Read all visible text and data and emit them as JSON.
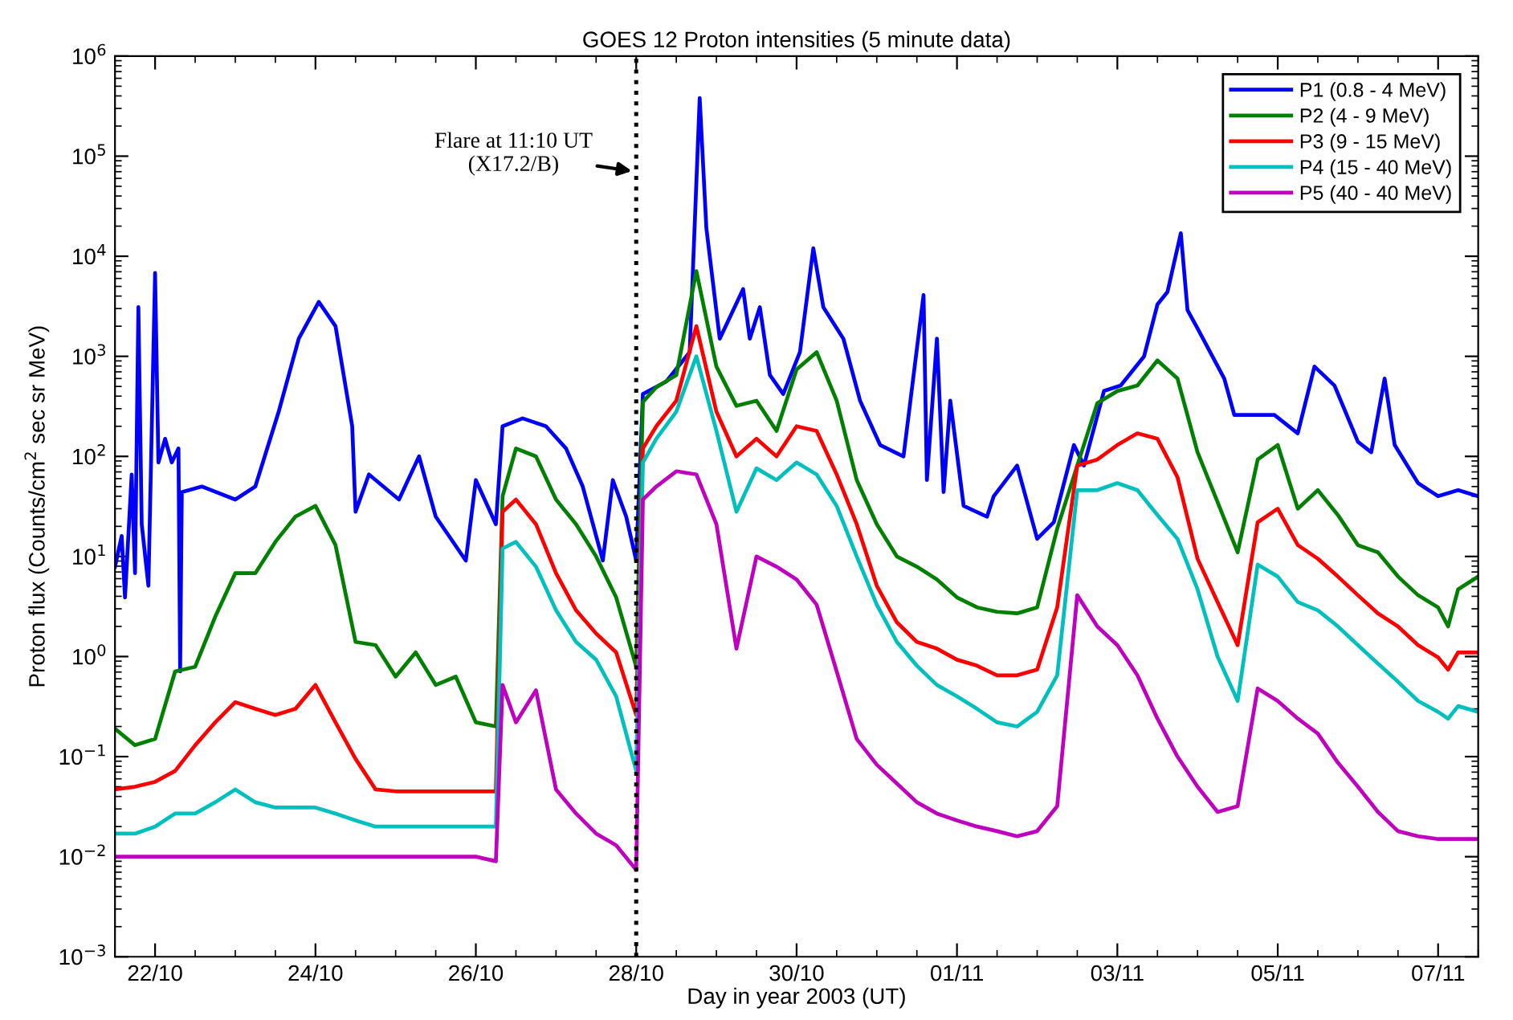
{
  "chart_data": {
    "type": "line",
    "title": "GOES 12 Proton intensities (5 minute data)",
    "xlabel": "Day in year 2003 (UT)",
    "ylabel": "Proton flux (Counts/cm$^{2}$ sec sr MeV)",
    "log": "y",
    "grid": false,
    "legend": "top right",
    "marker": "none",
    "line_style": "solid",
    "xlim": [
      "2003-10-21T12:00",
      "2003-11-07T12:00"
    ],
    "xticks": [
      {
        "value": "2003-10-22",
        "label": "22/10"
      },
      {
        "value": "2003-10-24",
        "label": "24/10"
      },
      {
        "value": "2003-10-26",
        "label": "26/10"
      },
      {
        "value": "2003-10-28",
        "label": "28/10"
      },
      {
        "value": "2003-10-30",
        "label": "30/10"
      },
      {
        "value": "2003-11-01",
        "label": "01/11"
      },
      {
        "value": "2003-11-03",
        "label": "03/11"
      },
      {
        "value": "2003-11-05",
        "label": "05/11"
      },
      {
        "value": "2003-11-07",
        "label": "07/11"
      }
    ],
    "ylim": [
      0.001,
      1000000
    ],
    "yticks": [
      {
        "value": 0.001,
        "label": "10$^{−3}$"
      },
      {
        "value": 0.01,
        "label": "10$^{−2}$"
      },
      {
        "value": 0.1,
        "label": "10$^{−1}$"
      },
      {
        "value": 1,
        "label": "10$^{0}$"
      },
      {
        "value": 10,
        "label": "10$^{1}$"
      },
      {
        "value": 100,
        "label": "10$^{2}$"
      },
      {
        "value": 1000,
        "label": "10$^{3}$"
      },
      {
        "value": 10000,
        "label": "10$^{4}$"
      },
      {
        "value": 100000,
        "label": "10$^{5}$"
      },
      {
        "value": 1000000,
        "label": "10$^{6}$"
      }
    ],
    "ref_lines": [
      {
        "axis": "x",
        "value": "2003-10-28",
        "label": null,
        "color": "#000000",
        "line_style": "dotted"
      }
    ],
    "annotations": [
      {
        "text": "Flare at 11:10 UT\n(X17.2/B)",
        "x": "2003-10-28",
        "y": 70000
      }
    ],
    "x": [
      "2003-10-21T12:00",
      "2003-10-21T18:00",
      "2003-10-22T00:00",
      "2003-10-22T06:00",
      "2003-10-22T12:00",
      "2003-10-22T18:00",
      "2003-10-23T00:00",
      "2003-10-23T06:00",
      "2003-10-23T12:00",
      "2003-10-23T18:00",
      "2003-10-24T00:00",
      "2003-10-24T06:00",
      "2003-10-24T12:00",
      "2003-10-24T18:00",
      "2003-10-25T00:00",
      "2003-10-25T06:00",
      "2003-10-25T12:00",
      "2003-10-25T18:00",
      "2003-10-26T00:00",
      "2003-10-26T06:00",
      "2003-10-26T08:00",
      "2003-10-26T12:00",
      "2003-10-26T18:00",
      "2003-10-27T00:00",
      "2003-10-27T06:00",
      "2003-10-27T12:00",
      "2003-10-27T18:00",
      "2003-10-28T00:00",
      "2003-10-28T02:00",
      "2003-10-28T06:00",
      "2003-10-28T12:00",
      "2003-10-28T18:00",
      "2003-10-29T00:00",
      "2003-10-29T06:00",
      "2003-10-29T12:00",
      "2003-10-29T18:00",
      "2003-10-30T00:00",
      "2003-10-30T06:00",
      "2003-10-30T12:00",
      "2003-10-30T18:00",
      "2003-10-31T00:00",
      "2003-10-31T06:00",
      "2003-10-31T12:00",
      "2003-10-31T18:00",
      "2003-11-01T00:00",
      "2003-11-01T06:00",
      "2003-11-01T12:00",
      "2003-11-01T18:00",
      "2003-11-02T00:00",
      "2003-11-02T06:00",
      "2003-11-02T12:00",
      "2003-11-02T18:00",
      "2003-11-03T00:00",
      "2003-11-03T06:00",
      "2003-11-03T12:00",
      "2003-11-03T18:00",
      "2003-11-04T00:00",
      "2003-11-04T06:00",
      "2003-11-04T12:00",
      "2003-11-04T18:00",
      "2003-11-05T00:00",
      "2003-11-05T06:00",
      "2003-11-05T12:00",
      "2003-11-05T18:00",
      "2003-11-06T00:00",
      "2003-11-06T06:00",
      "2003-11-06T12:00",
      "2003-11-06T18:00",
      "2003-11-07T00:00",
      "2003-11-07T03:00",
      "2003-11-07T06:00",
      "2003-11-07T12:00"
    ],
    "series": [
      {
        "name": "P1 (0.8 - 4 MeV)",
        "color": "#0000ff",
        "x": [
          "2003-10-21T12:00",
          "2003-10-21T14:00",
          "2003-10-21T15:00",
          "2003-10-21T17:00",
          "2003-10-21T18:00",
          "2003-10-21T19:00",
          "2003-10-21T20:00",
          "2003-10-21T22:00",
          "2003-10-22T00:00",
          "2003-10-22T01:00",
          "2003-10-22T03:00",
          "2003-10-22T05:00",
          "2003-10-22T07:00",
          "2003-10-22T07:30",
          "2003-10-22T08:00",
          "2003-10-22T14:00",
          "2003-10-23T00:00",
          "2003-10-23T06:00",
          "2003-10-23T13:00",
          "2003-10-23T19:00",
          "2003-10-24T01:00",
          "2003-10-24T06:00",
          "2003-10-24T11:00",
          "2003-10-24T12:00",
          "2003-10-24T16:00",
          "2003-10-25T01:00",
          "2003-10-25T07:00",
          "2003-10-25T12:00",
          "2003-10-25T21:00",
          "2003-10-26T00:00",
          "2003-10-26T06:00",
          "2003-10-26T08:00",
          "2003-10-26T14:00",
          "2003-10-26T21:00",
          "2003-10-27T03:00",
          "2003-10-27T08:00",
          "2003-10-27T14:00",
          "2003-10-27T17:00",
          "2003-10-27T21:00",
          "2003-10-28T00:00",
          "2003-10-28T02:00",
          "2003-10-28T09:00",
          "2003-10-28T16:00",
          "2003-10-28T19:00",
          "2003-10-28T21:00",
          "2003-10-29T01:00",
          "2003-10-29T08:00",
          "2003-10-29T10:00",
          "2003-10-29T13:00",
          "2003-10-29T16:00",
          "2003-10-29T20:00",
          "2003-10-30T01:00",
          "2003-10-30T05:00",
          "2003-10-30T08:00",
          "2003-10-30T14:00",
          "2003-10-30T19:00",
          "2003-10-31T01:00",
          "2003-10-31T08:00",
          "2003-10-31T14:00",
          "2003-10-31T15:00",
          "2003-10-31T18:00",
          "2003-10-31T20:00",
          "2003-10-31T22:00",
          "2003-11-01T02:00",
          "2003-11-01T09:00",
          "2003-11-01T11:00",
          "2003-11-01T18:00",
          "2003-11-02T00:00",
          "2003-11-02T05:00",
          "2003-11-02T11:00",
          "2003-11-02T14:00",
          "2003-11-02T20:00",
          "2003-11-03T01:00",
          "2003-11-03T08:00",
          "2003-11-03T12:00",
          "2003-11-03T15:00",
          "2003-11-03T19:00",
          "2003-11-03T21:00",
          "2003-11-04T00:00",
          "2003-11-04T08:00",
          "2003-11-04T11:00",
          "2003-11-04T23:00",
          "2003-11-05T06:00",
          "2003-11-05T11:00",
          "2003-11-05T17:00",
          "2003-11-06T00:00",
          "2003-11-06T04:00",
          "2003-11-06T08:00",
          "2003-11-06T11:00",
          "2003-11-06T18:00",
          "2003-11-07T00:00",
          "2003-11-07T06:00",
          "2003-11-07T12:00"
        ],
        "values": [
          7.9,
          16,
          3.9,
          66,
          6.8,
          3100,
          21,
          5.1,
          6800,
          87,
          150,
          87,
          120,
          0.71,
          44,
          50,
          37,
          50,
          280,
          1500,
          3500,
          2000,
          200,
          28,
          66,
          37,
          100,
          25,
          9.1,
          58,
          21,
          200,
          240,
          200,
          120,
          50,
          9.1,
          58,
          25,
          9.1,
          420,
          560,
          1100,
          380000,
          19000,
          1500,
          4700,
          1500,
          3100,
          650,
          420,
          1100,
          12000,
          3100,
          1500,
          360,
          130,
          100,
          4100,
          58,
          1500,
          44,
          360,
          32,
          25,
          40,
          81,
          15,
          22,
          130,
          81,
          450,
          510,
          1000,
          3300,
          4400,
          17000,
          2900,
          1900,
          600,
          260,
          260,
          170,
          790,
          510,
          140,
          110,
          600,
          130,
          54,
          40,
          46,
          40
        ]
      },
      {
        "name": "P2 (4 - 9 MeV)",
        "color": "#008000",
        "values": [
          0.19,
          0.13,
          0.15,
          0.71,
          0.79,
          2.5,
          6.8,
          6.8,
          14,
          25,
          32,
          13,
          1.4,
          1.3,
          0.63,
          1.1,
          0.52,
          0.63,
          0.22,
          0.2,
          40,
          120,
          100,
          37,
          21,
          10,
          3.9,
          0.79,
          350,
          490,
          650,
          7100,
          790,
          320,
          360,
          180,
          740,
          1100,
          360,
          58,
          21,
          10,
          7.9,
          5.9,
          3.9,
          3.1,
          2.8,
          2.7,
          3.1,
          19,
          81,
          340,
          450,
          510,
          910,
          600,
          110,
          35,
          11,
          93,
          130,
          30,
          46,
          26,
          13,
          11,
          6.3,
          4.1,
          3.1,
          2.0,
          4.7,
          6.3
        ]
      },
      {
        "name": "P3 (9 - 15 MeV)",
        "color": "#ff0000",
        "values": [
          0.047,
          0.05,
          0.056,
          0.072,
          0.13,
          0.22,
          0.35,
          0.3,
          0.26,
          0.3,
          0.52,
          0.22,
          0.095,
          0.047,
          0.045,
          0.045,
          0.045,
          0.045,
          0.045,
          0.045,
          28,
          37,
          21,
          6.8,
          2.9,
          1.7,
          1.1,
          0.26,
          120,
          200,
          360,
          2000,
          280,
          100,
          150,
          100,
          200,
          180,
          66,
          21,
          5.1,
          2.2,
          1.4,
          1.2,
          0.93,
          0.81,
          0.65,
          0.65,
          0.74,
          3.1,
          81,
          93,
          130,
          170,
          150,
          62,
          9.5,
          3.5,
          1.3,
          22,
          30,
          13,
          9.5,
          6.3,
          4.1,
          2.7,
          2.0,
          1.3,
          0.98,
          0.74,
          1.1,
          1.1
        ]
      },
      {
        "name": "P4 (15 - 40 MeV)",
        "color": "#00bfbf",
        "values": [
          0.017,
          0.017,
          0.02,
          0.027,
          0.027,
          0.035,
          0.047,
          0.035,
          0.031,
          0.031,
          0.031,
          0.027,
          0.023,
          0.02,
          0.02,
          0.02,
          0.02,
          0.02,
          0.02,
          0.02,
          12,
          14,
          7.9,
          2.9,
          1.4,
          0.93,
          0.4,
          0.072,
          87,
          150,
          280,
          1000,
          180,
          28,
          76,
          58,
          87,
          66,
          32,
          10,
          3.3,
          1.4,
          0.81,
          0.52,
          0.4,
          0.3,
          0.22,
          0.2,
          0.28,
          0.65,
          46,
          46,
          54,
          46,
          26,
          15,
          4.7,
          1.0,
          0.36,
          8.3,
          6.3,
          3.5,
          2.9,
          2.0,
          1.3,
          0.85,
          0.56,
          0.36,
          0.28,
          0.24,
          0.32,
          0.28
        ]
      },
      {
        "name": "P5 (40 - 40 MeV)",
        "color": "#bf00bf",
        "values": [
          0.01,
          0.01,
          0.01,
          0.01,
          0.01,
          0.01,
          0.01,
          0.01,
          0.01,
          0.01,
          0.01,
          0.01,
          0.01,
          0.01,
          0.01,
          0.01,
          0.01,
          0.01,
          0.01,
          0.009,
          0.52,
          0.22,
          0.46,
          0.047,
          0.027,
          0.017,
          0.013,
          0.0074,
          37,
          50,
          71,
          66,
          21,
          1.2,
          10,
          7.9,
          5.9,
          3.3,
          0.71,
          0.15,
          0.083,
          0.054,
          0.035,
          0.027,
          0.023,
          0.02,
          0.018,
          0.016,
          0.018,
          0.032,
          4.1,
          2.0,
          1.3,
          0.65,
          0.24,
          0.1,
          0.05,
          0.028,
          0.032,
          0.48,
          0.36,
          0.24,
          0.17,
          0.087,
          0.05,
          0.028,
          0.018,
          0.016,
          0.015,
          0.015,
          0.015,
          0.015
        ]
      }
    ]
  }
}
